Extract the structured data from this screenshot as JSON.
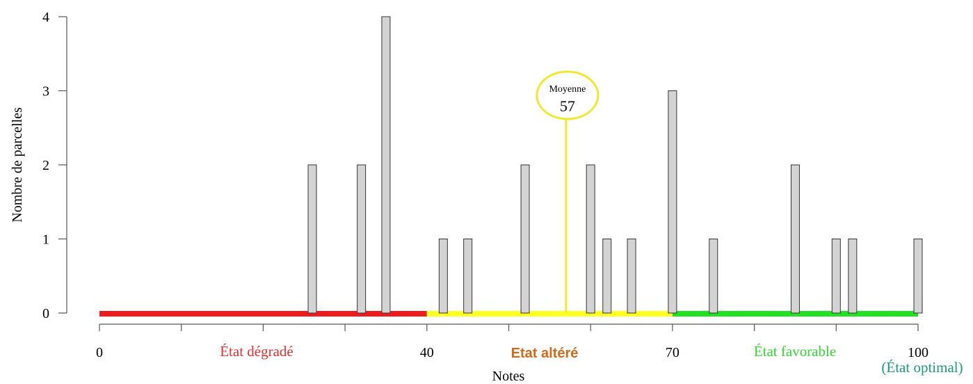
{
  "chart_data": {
    "type": "bar",
    "title": "",
    "xlabel": "Notes",
    "ylabel": "Nombre de parcelles",
    "xlim": [
      0,
      100
    ],
    "ylim": [
      0,
      4
    ],
    "y_ticks": [
      "0",
      "1",
      "2",
      "3",
      "4"
    ],
    "x_tick_values": [
      0,
      10,
      20,
      30,
      40,
      50,
      60,
      70,
      80,
      90,
      100
    ],
    "x_labels": [
      {
        "x": 0,
        "text": "0"
      },
      {
        "x": 40,
        "text": "40"
      },
      {
        "x": 70,
        "text": "70"
      },
      {
        "x": 100,
        "text": "100"
      }
    ],
    "bars": [
      {
        "x": 26,
        "count": 2
      },
      {
        "x": 32,
        "count": 2
      },
      {
        "x": 35,
        "count": 4
      },
      {
        "x": 42,
        "count": 1
      },
      {
        "x": 45,
        "count": 1
      },
      {
        "x": 52,
        "count": 2
      },
      {
        "x": 60,
        "count": 2
      },
      {
        "x": 62,
        "count": 1
      },
      {
        "x": 65,
        "count": 1
      },
      {
        "x": 70,
        "count": 3
      },
      {
        "x": 75,
        "count": 1
      },
      {
        "x": 85,
        "count": 2
      },
      {
        "x": 90,
        "count": 1
      },
      {
        "x": 92,
        "count": 1
      },
      {
        "x": 100,
        "count": 1
      }
    ],
    "zones": [
      {
        "from": 0,
        "to": 40,
        "label": "État dégradé",
        "color": "#ee1c1c",
        "label_color": "#e8302f"
      },
      {
        "from": 40,
        "to": 70,
        "label": "Etat altéré",
        "color": "#ffff22",
        "label_color": "#d06a19"
      },
      {
        "from": 70,
        "to": 100,
        "label": "État favorable",
        "color": "#22e022",
        "label_color": "#33d633"
      }
    ],
    "optimal_label": "(État optimal)",
    "optimal_color": "#1a9a7a",
    "mean": {
      "title": "Moyenne",
      "value": 57,
      "display": "57",
      "color": "#f2e830"
    },
    "bar_fill": "#d3d3d3",
    "bar_stroke": "#333333",
    "grid": false
  }
}
